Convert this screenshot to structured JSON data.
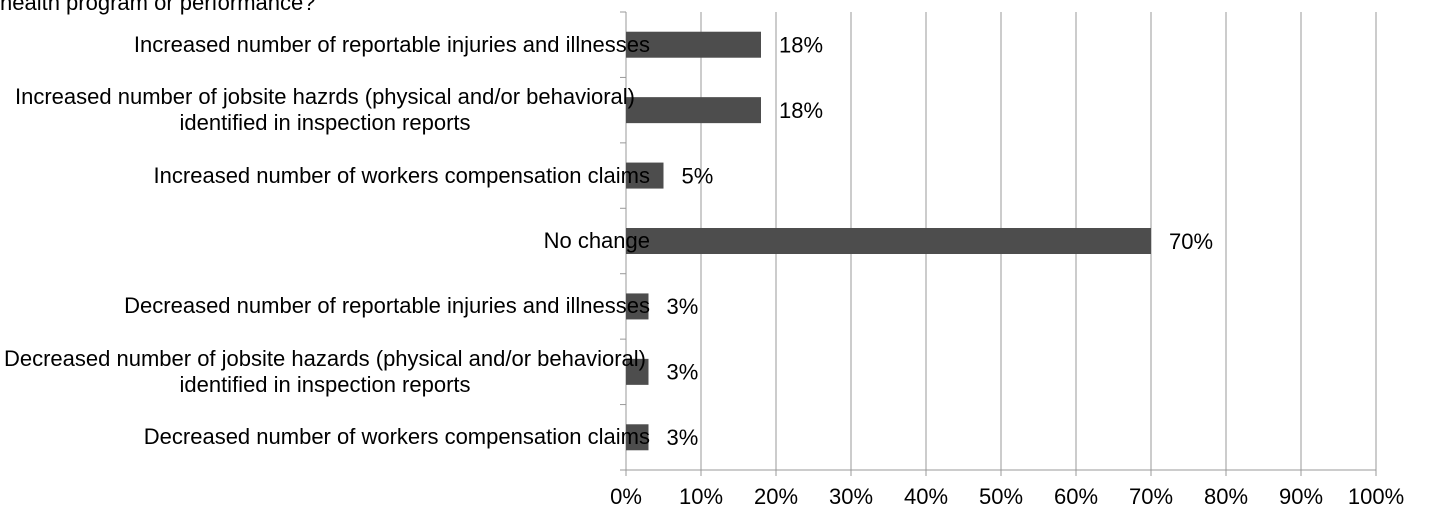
{
  "chart_data": {
    "type": "bar",
    "orientation": "horizontal",
    "title": "health program or performance?",
    "categories": [
      "Increased number of reportable injuries and illnesses",
      "Increased number of jobsite hazrds (physical and/or behavioral) identified in inspection reports",
      "Increased number of workers compensation claims",
      "No change",
      "Decreased number of reportable injuries and illnesses",
      "Decreased number of jobsite hazards (physical and/or behavioral) identified in inspection reports",
      "Decreased number of workers compensation claims"
    ],
    "values": [
      18,
      18,
      5,
      70,
      3,
      3,
      3
    ],
    "value_labels": [
      "18%",
      "18%",
      "5%",
      "70%",
      "3%",
      "3%",
      "3%"
    ],
    "color": "#4d4d4d",
    "xlim": [
      0,
      100
    ],
    "xticks": [
      {
        "value": 0,
        "label": "0%"
      },
      {
        "value": 10,
        "label": "10%"
      },
      {
        "value": 20,
        "label": "20%"
      },
      {
        "value": 30,
        "label": "30%"
      },
      {
        "value": 40,
        "label": "40%"
      },
      {
        "value": 50,
        "label": "50%"
      },
      {
        "value": 60,
        "label": "60%"
      },
      {
        "value": 70,
        "label": "70%"
      },
      {
        "value": 80,
        "label": "80%"
      },
      {
        "value": 90,
        "label": "90%"
      },
      {
        "value": 100,
        "label": "100%"
      }
    ],
    "grid": true
  }
}
